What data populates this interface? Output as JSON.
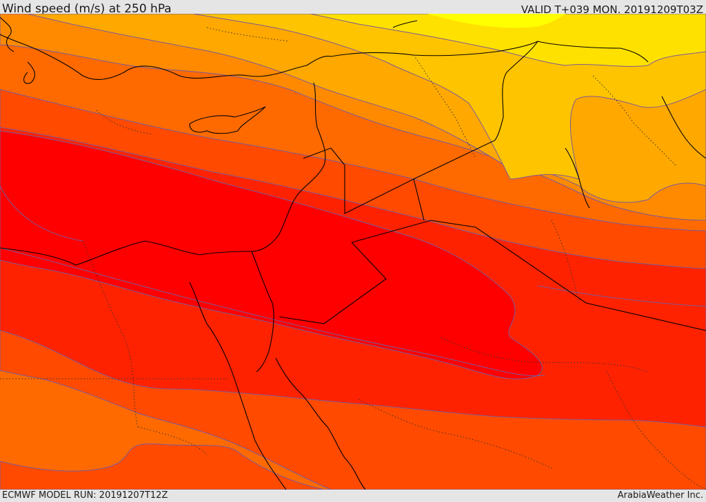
{
  "header": {
    "title": "Wind speed (m/s) at 250 hPa",
    "valid_time": "VALID T+039 MON. 20191209T03Z"
  },
  "footer": {
    "model_run": "ECMWF MODEL RUN: 20191207T12Z",
    "credit": "ArabiaWeather Inc."
  },
  "colors": {
    "band_yellow": "#ffff00",
    "band_light_yellow": "#ffe600",
    "band_yellow_orange": "#ffc000",
    "band_orange_light": "#ffa000",
    "band_orange": "#ff8000",
    "band_orange_dark": "#ff6000",
    "band_red_orange": "#ff4000",
    "band_red_light": "#ff2000",
    "band_red": "#ff0000",
    "contour_line": "#7050a0",
    "coast_line": "#000000"
  }
}
